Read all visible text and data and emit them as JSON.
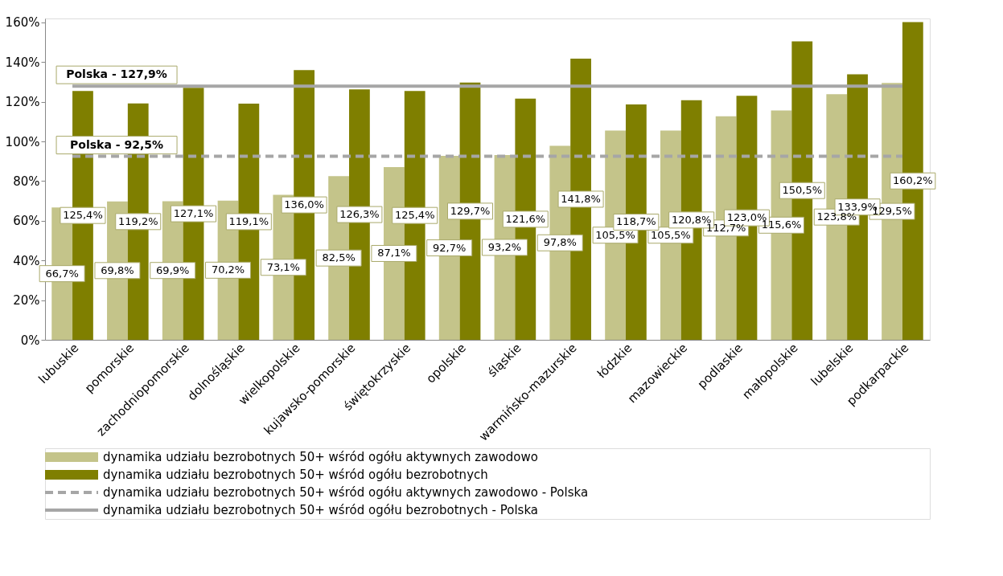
{
  "chart_data": {
    "type": "bar",
    "categories": [
      "lubuskie",
      "pomorskie",
      "zachodniopomorskie",
      "dolnośląskie",
      "wielkopolskie",
      "kujawsko-pomorskie",
      "świętokrzyskie",
      "opolskie",
      "śląskie",
      "warmińsko-mazurskie",
      "łódzkie",
      "mazowieckie",
      "podlaskie",
      "małopolskie",
      "lubelskie",
      "podkarpackie"
    ],
    "series": [
      {
        "name": "dynamika udziału bezrobotnych 50+ wśród ogółu aktywnych zawodowo",
        "color": "#c4c48a",
        "values": [
          66.7,
          69.8,
          69.9,
          70.2,
          73.1,
          82.5,
          87.1,
          92.7,
          93.2,
          97.8,
          105.5,
          105.5,
          112.7,
          115.6,
          123.8,
          129.5
        ],
        "value_labels": [
          "66,7%",
          "69,8%",
          "69,9%",
          "70,2%",
          "73,1%",
          "82,5%",
          "87,1%",
          "92,7%",
          "93,2%",
          "97,8%",
          "105,5%",
          "105,5%",
          "112,7%",
          "115,6%",
          "123,8%",
          "129,5%"
        ]
      },
      {
        "name": "dynamika udziału bezrobotnych 50+ wśród ogółu bezrobotnych",
        "color": "#7f7f00",
        "values": [
          125.4,
          119.2,
          127.1,
          119.1,
          136.0,
          126.3,
          125.4,
          129.7,
          121.6,
          141.8,
          118.7,
          120.8,
          123.0,
          150.5,
          133.9,
          160.2
        ],
        "value_labels": [
          "125,4%",
          "119,2%",
          "127,1%",
          "119,1%",
          "136,0%",
          "126,3%",
          "125,4%",
          "129,7%",
          "121,6%",
          "141,8%",
          "118,7%",
          "120,8%",
          "123,0%",
          "150,5%",
          "133,9%",
          "160,2%"
        ]
      },
      {
        "name": "dynamika udziału bezrobotnych 50+ wśród ogółu aktywnych zawodowo - Polska",
        "type": "line",
        "line_style": "dashed",
        "color": "#a6a6a6",
        "values": [
          92.5,
          92.5,
          92.5,
          92.5,
          92.5,
          92.5,
          92.5,
          92.5,
          92.5,
          92.5,
          92.5,
          92.5,
          92.5,
          92.5,
          92.5,
          92.5
        ]
      },
      {
        "name": "dynamika udziału bezrobotnych 50+ wśród ogółu bezrobotnych - Polska",
        "type": "line",
        "line_style": "solid",
        "color": "#a6a6a6",
        "values": [
          127.9,
          127.9,
          127.9,
          127.9,
          127.9,
          127.9,
          127.9,
          127.9,
          127.9,
          127.9,
          127.9,
          127.9,
          127.9,
          127.9,
          127.9,
          127.9
        ]
      }
    ],
    "annotations": [
      {
        "text": "Polska - 127,9%",
        "x": "lubuskie",
        "y": 127.9
      },
      {
        "text": "Polska - 92,5%",
        "x": "lubuskie",
        "y": 92.5
      }
    ],
    "ylim": [
      0,
      162
    ],
    "yticks": [
      {
        "value": 0,
        "label": "0%"
      },
      {
        "value": 20,
        "label": "20%"
      },
      {
        "value": 40,
        "label": "40%"
      },
      {
        "value": 60,
        "label": "60%"
      },
      {
        "value": 80,
        "label": "80%"
      },
      {
        "value": 100,
        "label": "100%"
      },
      {
        "value": 120,
        "label": "120%"
      },
      {
        "value": 140,
        "label": "140%"
      },
      {
        "value": 160,
        "label": "160%"
      }
    ],
    "grid": false,
    "legend": "bottom"
  }
}
